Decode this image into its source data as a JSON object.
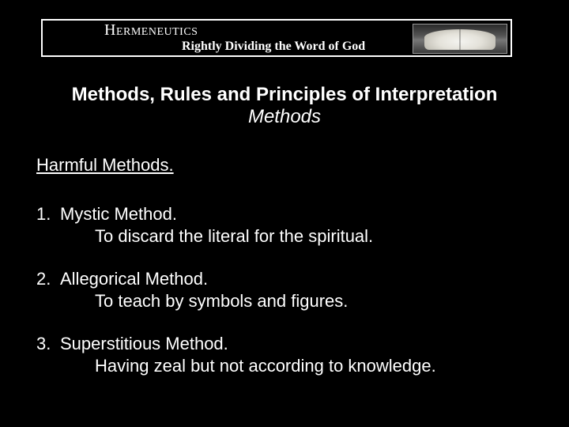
{
  "header": {
    "title": "Hermeneutics",
    "subtitle": "Rightly Dividing the Word of God"
  },
  "main": {
    "title": "Methods, Rules and Principles of Interpretation",
    "subtitle": "Methods"
  },
  "section": {
    "heading": "Harmful Methods."
  },
  "items": [
    {
      "num": "1.",
      "title": "Mystic Method.",
      "desc": "To discard the literal for the spiritual."
    },
    {
      "num": "2.",
      "title": "Allegorical Method.",
      "desc": "To teach by symbols and figures."
    },
    {
      "num": "3.",
      "title": "Superstitious Method.",
      "desc": "Having zeal but not according to knowledge."
    }
  ],
  "colors": {
    "background": "#000000",
    "text": "#ffffff",
    "border": "#ffffff"
  },
  "typography": {
    "header_font": "Georgia serif small-caps",
    "body_font": "Arial sans-serif",
    "main_title_size_pt": 18,
    "body_size_pt": 17
  }
}
